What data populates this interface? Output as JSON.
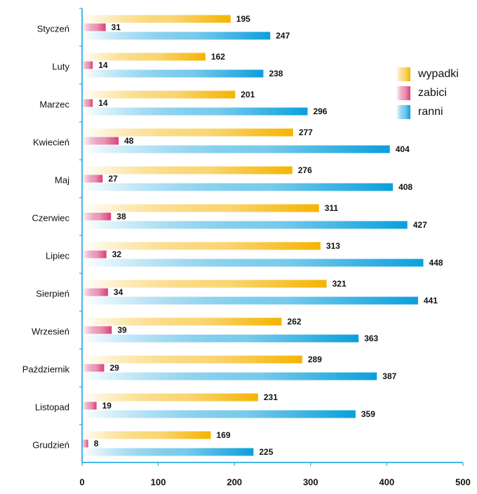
{
  "chart_data": {
    "type": "bar",
    "orientation": "horizontal",
    "categories": [
      "Styczeń",
      "Luty",
      "Marzec",
      "Kwiecień",
      "Maj",
      "Czerwiec",
      "Lipiec",
      "Sierpień",
      "Wrzesień",
      "Październik",
      "Listopad",
      "Grudzień"
    ],
    "series": [
      {
        "name": "wypadki",
        "color": "#f5b400",
        "values": [
          195,
          162,
          201,
          277,
          276,
          311,
          313,
          321,
          262,
          289,
          231,
          169
        ]
      },
      {
        "name": "zabici",
        "color": "#d9407a",
        "values": [
          31,
          14,
          14,
          48,
          27,
          38,
          32,
          34,
          39,
          29,
          19,
          8
        ]
      },
      {
        "name": "ranni",
        "color": "#0a9fdc",
        "values": [
          247,
          238,
          296,
          404,
          408,
          427,
          448,
          441,
          363,
          387,
          359,
          225
        ]
      }
    ],
    "xlim": [
      0,
      500
    ],
    "xticks": [
      0,
      100,
      200,
      300,
      400,
      500
    ],
    "legend": "right"
  }
}
